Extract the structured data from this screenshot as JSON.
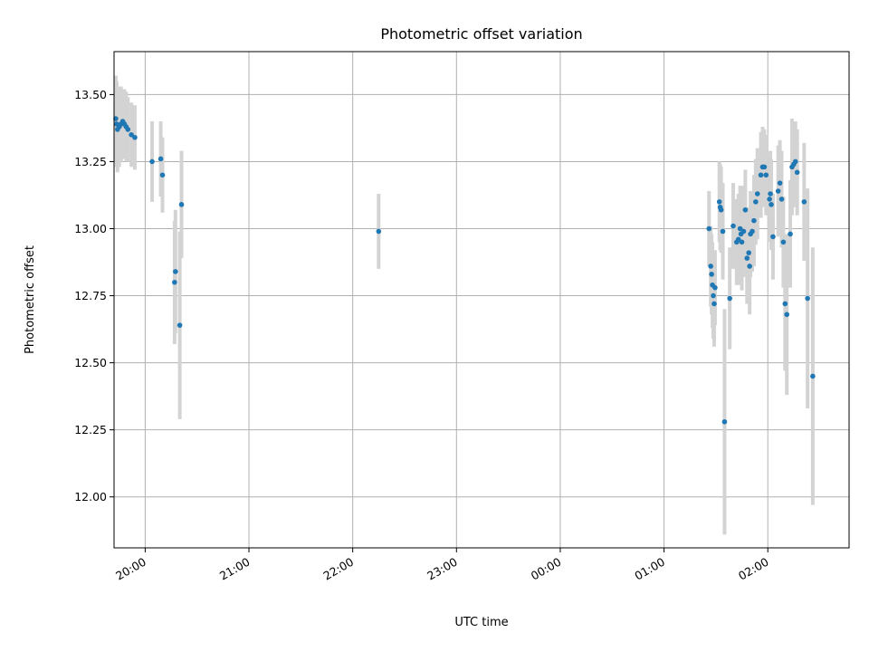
{
  "chart_data": {
    "type": "scatter",
    "title": "Photometric offset variation",
    "xlabel": "UTC time",
    "ylabel": "Photometric offset",
    "grid": true,
    "x_is_time": true,
    "xlim": [
      "19:42",
      "02:47"
    ],
    "ylim": [
      11.81,
      13.66
    ],
    "x_ticks": [
      "20:00",
      "21:00",
      "22:00",
      "23:00",
      "00:00",
      "01:00",
      "02:00"
    ],
    "y_ticks": [
      "12.00",
      "12.25",
      "12.50",
      "12.75",
      "13.00",
      "13.25",
      "13.50"
    ],
    "y_tick_values": [
      12.0,
      12.25,
      12.5,
      12.75,
      13.0,
      13.25,
      13.5
    ],
    "marker_color": "#1f77b4",
    "errorbar_color": "#d3d3d3",
    "series": [
      {
        "points": [
          [
            "19:43",
            13.41,
            0.16
          ],
          [
            "19:43.5",
            13.39,
            0.16
          ],
          [
            "19:44",
            13.37,
            0.16
          ],
          [
            "19:45",
            13.38,
            0.15
          ],
          [
            "19:46",
            13.39,
            0.14
          ],
          [
            "19:47",
            13.4,
            0.12
          ],
          [
            "19:48",
            13.39,
            0.13
          ],
          [
            "19:49",
            13.38,
            0.13
          ],
          [
            "19:50",
            13.37,
            0.12
          ],
          [
            "19:52",
            13.35,
            0.12
          ],
          [
            "19:54",
            13.34,
            0.12
          ],
          [
            "20:04",
            13.25,
            0.15
          ],
          [
            "20:09",
            13.26,
            0.14
          ],
          [
            "20:10",
            13.2,
            0.14
          ],
          [
            "20:17",
            12.8,
            0.23
          ],
          [
            "20:17.5",
            12.84,
            0.23
          ],
          [
            "20:20",
            12.64,
            0.35
          ],
          [
            "20:21",
            13.09,
            0.2
          ],
          [
            "22:15",
            12.99,
            0.14
          ],
          [
            "01:26",
            13.0,
            0.14
          ],
          [
            "01:27",
            12.86,
            0.15
          ],
          [
            "01:27.5",
            12.83,
            0.15
          ],
          [
            "01:28",
            12.79,
            0.16
          ],
          [
            "01:28.5",
            12.75,
            0.16
          ],
          [
            "01:29",
            12.72,
            0.16
          ],
          [
            "01:29.5",
            12.78,
            0.14
          ],
          [
            "01:32",
            13.1,
            0.15
          ],
          [
            "01:32.5",
            13.08,
            0.16
          ],
          [
            "01:33",
            13.07,
            0.16
          ],
          [
            "01:34",
            12.99,
            0.18
          ],
          [
            "01:35",
            12.28,
            0.42
          ],
          [
            "01:38",
            12.74,
            0.19
          ],
          [
            "01:40",
            13.01,
            0.16
          ],
          [
            "01:42",
            12.95,
            0.16
          ],
          [
            "01:43",
            12.96,
            0.17
          ],
          [
            "01:44",
            13.0,
            0.16
          ],
          [
            "01:44.5",
            12.98,
            0.16
          ],
          [
            "01:45",
            12.95,
            0.18
          ],
          [
            "01:46",
            12.99,
            0.17
          ],
          [
            "01:47",
            13.07,
            0.15
          ],
          [
            "01:48",
            12.89,
            0.17
          ],
          [
            "01:49",
            12.91,
            0.17
          ],
          [
            "01:49.5",
            12.86,
            0.18
          ],
          [
            "01:50",
            12.98,
            0.16
          ],
          [
            "01:51",
            12.99,
            0.15
          ],
          [
            "01:52",
            13.03,
            0.17
          ],
          [
            "01:53",
            13.1,
            0.16
          ],
          [
            "01:54",
            13.13,
            0.17
          ],
          [
            "01:56",
            13.2,
            0.16
          ],
          [
            "01:57",
            13.23,
            0.15
          ],
          [
            "01:58",
            13.23,
            0.14
          ],
          [
            "01:59",
            13.2,
            0.15
          ],
          [
            "02:01",
            13.11,
            0.16
          ],
          [
            "02:01.5",
            13.13,
            0.16
          ],
          [
            "02:02",
            13.09,
            0.17
          ],
          [
            "02:03",
            12.97,
            0.16
          ],
          [
            "02:06",
            13.14,
            0.17
          ],
          [
            "02:07",
            13.17,
            0.16
          ],
          [
            "02:08",
            13.11,
            0.18
          ],
          [
            "02:09",
            12.95,
            0.17
          ],
          [
            "02:10",
            12.72,
            0.25
          ],
          [
            "02:11",
            12.68,
            0.3
          ],
          [
            "02:13",
            12.98,
            0.2
          ],
          [
            "02:14",
            13.23,
            0.18
          ],
          [
            "02:15",
            13.24,
            0.16
          ],
          [
            "02:16",
            13.25,
            0.15
          ],
          [
            "02:17",
            13.21,
            0.16
          ],
          [
            "02:21",
            13.1,
            0.22
          ],
          [
            "02:23",
            12.74,
            0.41
          ],
          [
            "02:26",
            12.45,
            0.48
          ]
        ]
      }
    ]
  }
}
